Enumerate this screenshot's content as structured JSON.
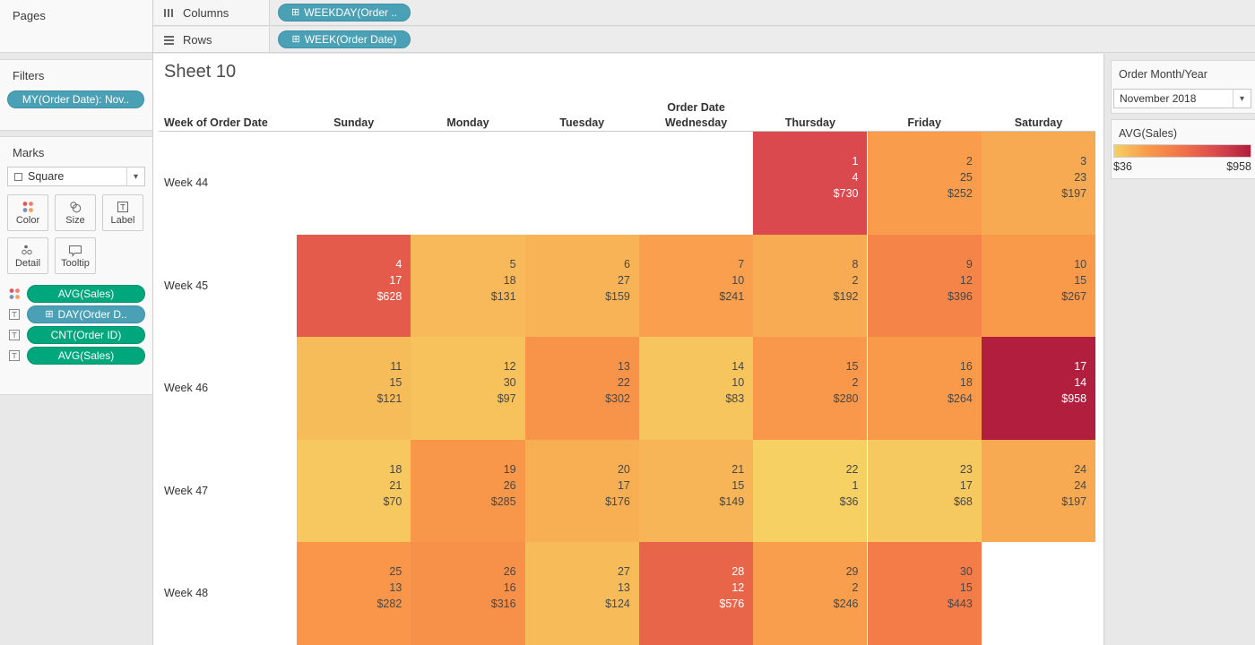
{
  "colors": {
    "pill_blue": "#4aa0b5",
    "pill_blue_border": "#3e90a5",
    "pill_green": "#00a77c",
    "pill_green_border": "#00936d"
  },
  "shelves": {
    "columns_label": "Columns",
    "rows_label": "Rows",
    "columns_pill": "WEEKDAY(Order ..",
    "rows_pill": "WEEK(Order Date)",
    "pill_prefix_glyph": "⊞"
  },
  "pages": {
    "title": "Pages"
  },
  "filters": {
    "title": "Filters",
    "pill": "MY(Order Date): Nov.."
  },
  "marks": {
    "title": "Marks",
    "mark_type": "Square",
    "buttons": [
      {
        "icon": "color-icon",
        "label": "Color"
      },
      {
        "icon": "size-icon",
        "label": "Size"
      },
      {
        "icon": "label-icon",
        "label": "Label"
      },
      {
        "icon": "detail-icon",
        "label": "Detail"
      },
      {
        "icon": "tooltip-icon",
        "label": "Tooltip"
      }
    ],
    "pills": [
      {
        "row_icon": "color-icon",
        "color": "green",
        "label": "AVG(Sales)"
      },
      {
        "row_icon": "text-icon",
        "color": "blue",
        "label": "DAY(Order D..",
        "prefix": true
      },
      {
        "row_icon": "text-icon",
        "color": "green",
        "label": "CNT(Order ID)"
      },
      {
        "row_icon": "text-icon",
        "color": "green",
        "label": "AVG(Sales)"
      }
    ]
  },
  "right_panel": {
    "month_card": {
      "title": "Order Month/Year",
      "selected": "November 2018"
    },
    "legend_card": {
      "title": "AVG(Sales)",
      "min_label": "$36",
      "max_label": "$958"
    }
  },
  "chart_data": {
    "type": "heatmap",
    "title": "Sheet 10",
    "row_header_label": "Week of Order Date",
    "column_field_label": "Order Date",
    "columns": [
      "Sunday",
      "Monday",
      "Tuesday",
      "Wednesday",
      "Thursday",
      "Friday",
      "Saturday"
    ],
    "rows": [
      "Week 44",
      "Week 45",
      "Week 46",
      "Week 47",
      "Week 48"
    ],
    "cell_lines": [
      "day_of_month",
      "order_count",
      "avg_sales"
    ],
    "cells": [
      [
        null,
        null,
        null,
        null,
        {
          "day": 1,
          "count": 4,
          "sales": 730,
          "sales_label": "$730"
        },
        {
          "day": 2,
          "count": 25,
          "sales": 252,
          "sales_label": "$252"
        },
        {
          "day": 3,
          "count": 23,
          "sales": 197,
          "sales_label": "$197"
        }
      ],
      [
        {
          "day": 4,
          "count": 17,
          "sales": 628,
          "sales_label": "$628"
        },
        {
          "day": 5,
          "count": 18,
          "sales": 131,
          "sales_label": "$131"
        },
        {
          "day": 6,
          "count": 27,
          "sales": 159,
          "sales_label": "$159"
        },
        {
          "day": 7,
          "count": 10,
          "sales": 241,
          "sales_label": "$241"
        },
        {
          "day": 8,
          "count": 2,
          "sales": 192,
          "sales_label": "$192"
        },
        {
          "day": 9,
          "count": 12,
          "sales": 396,
          "sales_label": "$396"
        },
        {
          "day": 10,
          "count": 15,
          "sales": 267,
          "sales_label": "$267"
        }
      ],
      [
        {
          "day": 11,
          "count": 15,
          "sales": 121,
          "sales_label": "$121"
        },
        {
          "day": 12,
          "count": 30,
          "sales": 97,
          "sales_label": "$97"
        },
        {
          "day": 13,
          "count": 22,
          "sales": 302,
          "sales_label": "$302"
        },
        {
          "day": 14,
          "count": 10,
          "sales": 83,
          "sales_label": "$83"
        },
        {
          "day": 15,
          "count": 2,
          "sales": 280,
          "sales_label": "$280"
        },
        {
          "day": 16,
          "count": 18,
          "sales": 264,
          "sales_label": "$264"
        },
        {
          "day": 17,
          "count": 14,
          "sales": 958,
          "sales_label": "$958"
        }
      ],
      [
        {
          "day": 18,
          "count": 21,
          "sales": 70,
          "sales_label": "$70"
        },
        {
          "day": 19,
          "count": 26,
          "sales": 285,
          "sales_label": "$285"
        },
        {
          "day": 20,
          "count": 17,
          "sales": 176,
          "sales_label": "$176"
        },
        {
          "day": 21,
          "count": 15,
          "sales": 149,
          "sales_label": "$149"
        },
        {
          "day": 22,
          "count": 1,
          "sales": 36,
          "sales_label": "$36"
        },
        {
          "day": 23,
          "count": 17,
          "sales": 68,
          "sales_label": "$68"
        },
        {
          "day": 24,
          "count": 24,
          "sales": 197,
          "sales_label": "$197"
        }
      ],
      [
        {
          "day": 25,
          "count": 13,
          "sales": 282,
          "sales_label": "$282"
        },
        {
          "day": 26,
          "count": 16,
          "sales": 316,
          "sales_label": "$316"
        },
        {
          "day": 27,
          "count": 13,
          "sales": 124,
          "sales_label": "$124"
        },
        {
          "day": 28,
          "count": 12,
          "sales": 576,
          "sales_label": "$576"
        },
        {
          "day": 29,
          "count": 2,
          "sales": 246,
          "sales_label": "$246"
        },
        {
          "day": 30,
          "count": 15,
          "sales": 443,
          "sales_label": "$443"
        },
        null
      ]
    ],
    "color_scale": {
      "min": 36,
      "max": 958,
      "stops": [
        [
          0,
          "#f6d063"
        ],
        [
          0.25,
          "#f9994a"
        ],
        [
          0.5,
          "#f27349"
        ],
        [
          0.75,
          "#d9494d"
        ],
        [
          1,
          "#b11e3e"
        ]
      ],
      "white_text_threshold": 500
    },
    "legend": {
      "title": "AVG(Sales)",
      "min_label": "$36",
      "max_label": "$958"
    }
  }
}
